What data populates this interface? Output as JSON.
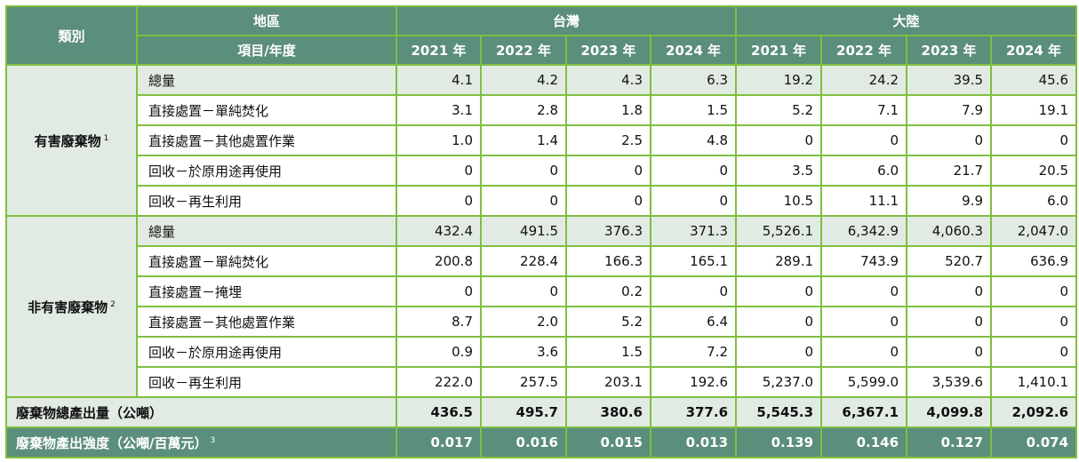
{
  "header": {
    "category_label": "類別",
    "region_label": "地區",
    "item_year_label": "項目/年度",
    "regions": [
      "台灣",
      "大陸"
    ],
    "years": [
      "2021 年",
      "2022 年",
      "2023 年",
      "2024 年"
    ]
  },
  "hazardous": {
    "label": "有害廢棄物",
    "note": "1",
    "rows": [
      {
        "item": "總量",
        "values": [
          "4.1",
          "4.2",
          "4.3",
          "6.3",
          "19.2",
          "24.2",
          "39.5",
          "45.6"
        ]
      },
      {
        "item": "直接處置－單純焚化",
        "values": [
          "3.1",
          "2.8",
          "1.8",
          "1.5",
          "5.2",
          "7.1",
          "7.9",
          "19.1"
        ]
      },
      {
        "item": "直接處置－其他處置作業",
        "values": [
          "1.0",
          "1.4",
          "2.5",
          "4.8",
          "0",
          "0",
          "0",
          "0"
        ]
      },
      {
        "item": "回收－於原用途再使用",
        "values": [
          "0",
          "0",
          "0",
          "0",
          "3.5",
          "6.0",
          "21.7",
          "20.5"
        ]
      },
      {
        "item": "回收－再生利用",
        "values": [
          "0",
          "0",
          "0",
          "0",
          "10.5",
          "11.1",
          "9.9",
          "6.0"
        ]
      }
    ]
  },
  "non_hazardous": {
    "label": "非有害廢棄物",
    "note": "2",
    "rows": [
      {
        "item": "總量",
        "values": [
          "432.4",
          "491.5",
          "376.3",
          "371.3",
          "5,526.1",
          "6,342.9",
          "4,060.3",
          "2,047.0"
        ]
      },
      {
        "item": "直接處置－單純焚化",
        "values": [
          "200.8",
          "228.4",
          "166.3",
          "165.1",
          "289.1",
          "743.9",
          "520.7",
          "636.9"
        ]
      },
      {
        "item": "直接處置－掩埋",
        "values": [
          "0",
          "0",
          "0.2",
          "0",
          "0",
          "0",
          "0",
          "0"
        ]
      },
      {
        "item": "直接處置－其他處置作業",
        "values": [
          "8.7",
          "2.0",
          "5.2",
          "6.4",
          "0",
          "0",
          "0",
          "0"
        ]
      },
      {
        "item": "回收－於原用途再使用",
        "values": [
          "0.9",
          "3.6",
          "1.5",
          "7.2",
          "0",
          "0",
          "0",
          "0"
        ]
      },
      {
        "item": "回收－再生利用",
        "values": [
          "222.0",
          "257.5",
          "203.1",
          "192.6",
          "5,237.0",
          "5,599.0",
          "3,539.6",
          "1,410.1"
        ]
      }
    ]
  },
  "total": {
    "label": "廢棄物總產出量（公噸）",
    "values": [
      "436.5",
      "495.7",
      "380.6",
      "377.6",
      "5,545.3",
      "6,367.1",
      "4,099.8",
      "2,092.6"
    ]
  },
  "intensity": {
    "label": "廢棄物產出強度（公噸/百萬元）",
    "note": "3",
    "values": [
      "0.017",
      "0.016",
      "0.015",
      "0.013",
      "0.139",
      "0.146",
      "0.127",
      "0.074"
    ]
  }
}
